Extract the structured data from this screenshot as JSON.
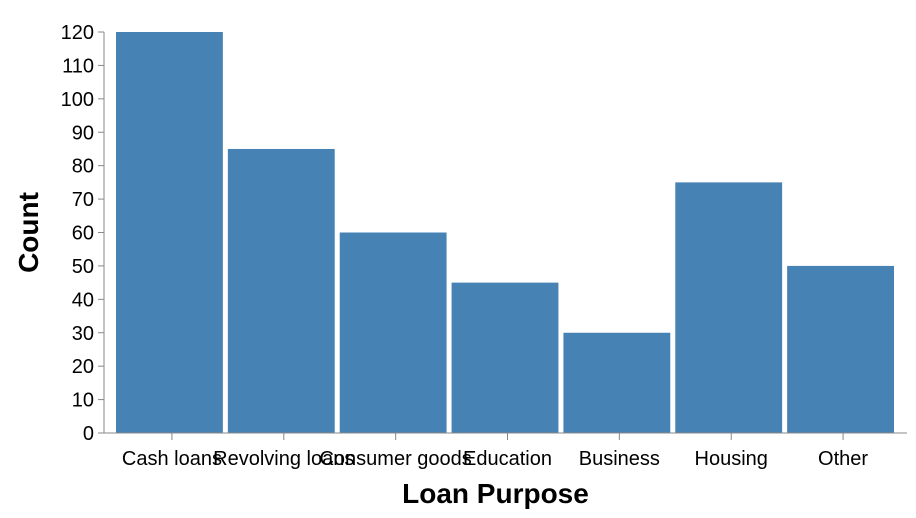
{
  "chart_data": {
    "type": "bar",
    "title": "",
    "xlabel": "Loan Purpose",
    "ylabel": "Count",
    "categories": [
      "Cash loans",
      "Revolving loans",
      "Consumer goods",
      "Education",
      "Business",
      "Housing",
      "Other"
    ],
    "values": [
      120,
      85,
      60,
      45,
      30,
      75,
      50
    ],
    "ylim": [
      0,
      120
    ],
    "yticks": [
      0,
      10,
      20,
      30,
      40,
      50,
      60,
      70,
      80,
      90,
      100,
      110,
      120
    ],
    "grid": false,
    "bar_color": "#4682b4"
  }
}
